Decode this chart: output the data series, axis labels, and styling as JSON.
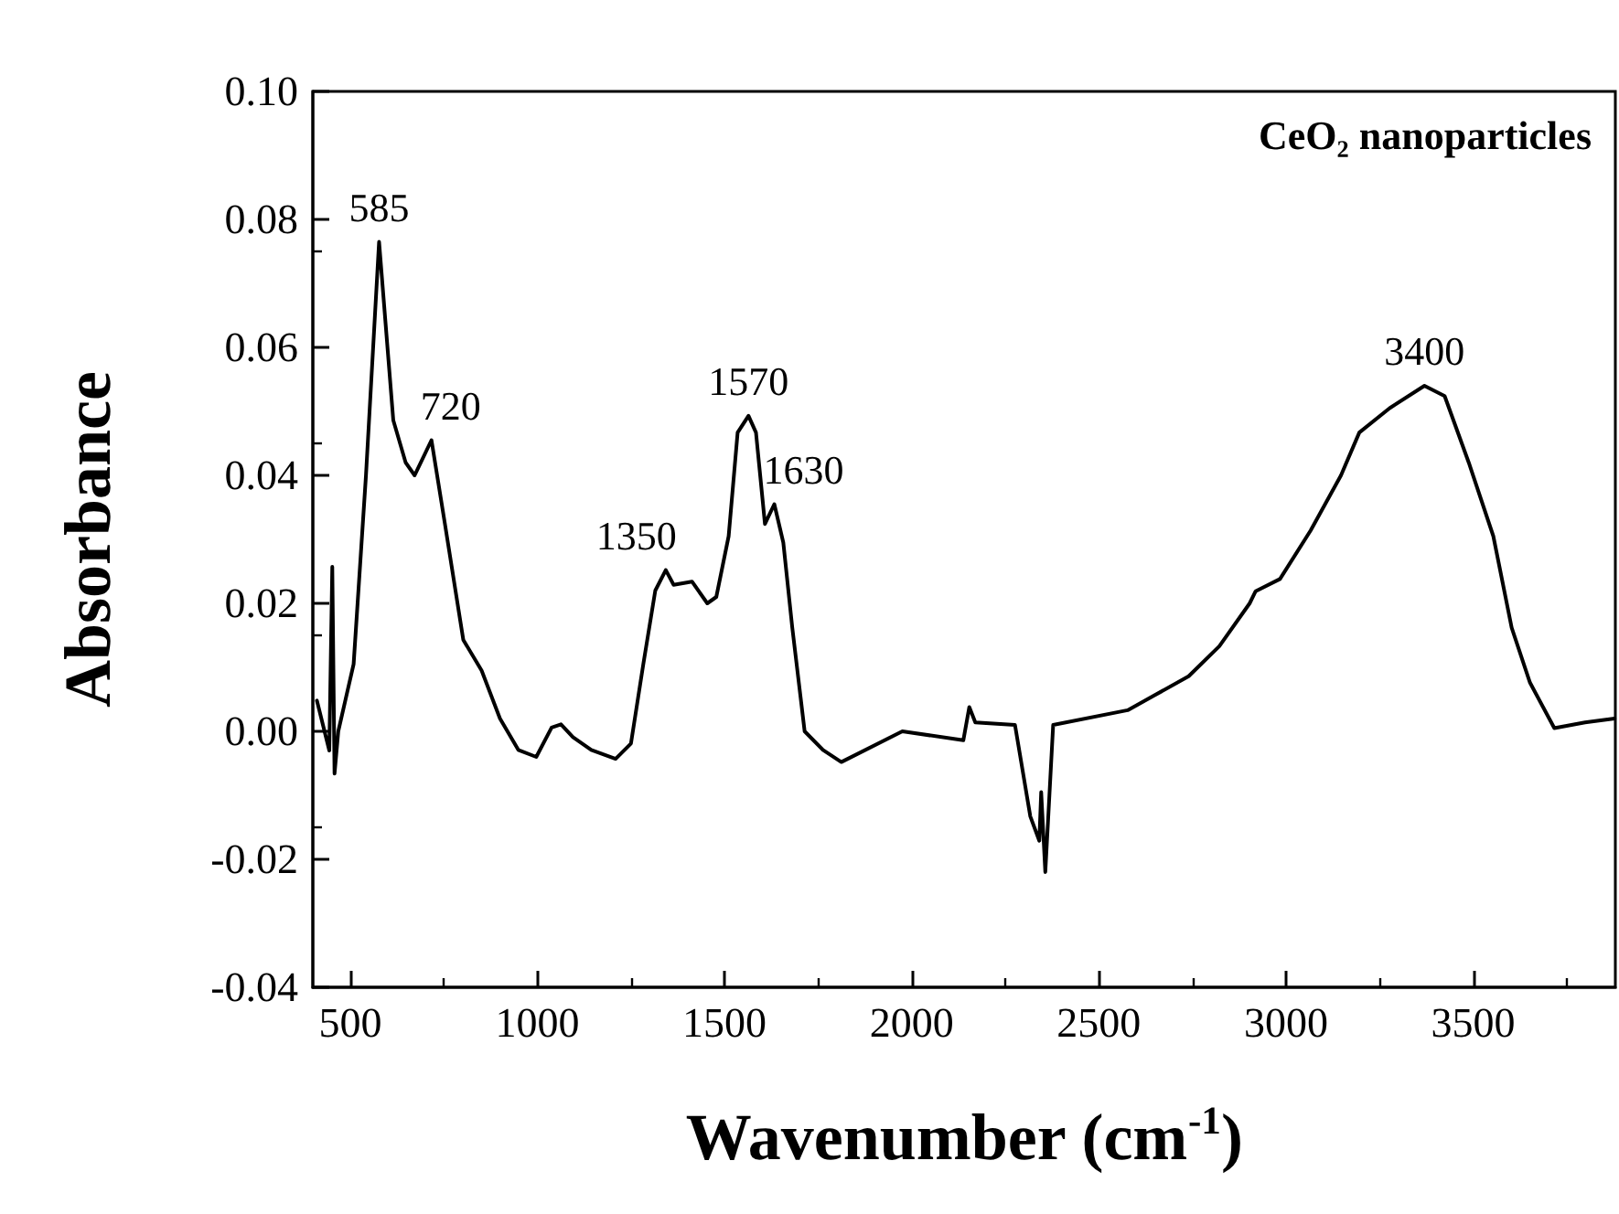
{
  "chart_data": {
    "type": "line",
    "title": "CeO₂ nanoparticles",
    "xlabel": "Wavenumber (cm$^{-1}$)",
    "ylabel": "Absorbance",
    "xlim": [
      400,
      3880
    ],
    "xticks": [
      500,
      1000,
      1500,
      2000,
      2500,
      3000,
      3500
    ],
    "ylim": [
      -0.04,
      0.1
    ],
    "yticks": [
      {
        "value": -0.04,
        "label": "-0.04"
      },
      {
        "value": -0.02,
        "label": "-0.02"
      },
      {
        "value": 0,
        "label": "0.00"
      },
      {
        "value": 0.02,
        "label": "0.02"
      },
      {
        "value": 0.04,
        "label": "0.04"
      },
      {
        "value": 0.06,
        "label": "0.06"
      },
      {
        "value": 0.08,
        "label": "0.08"
      },
      {
        "value": 0.1,
        "label": "0.10"
      }
    ],
    "grid": false,
    "marker": "none",
    "line_style": "solid",
    "annotations": [
      {
        "text": "585",
        "x": 577,
        "y": 0.0765
      },
      {
        "text": "720",
        "x": 717,
        "y": 0.0455
      },
      {
        "text": "1350",
        "x": 1343,
        "y": 0.0252
      },
      {
        "text": "1570",
        "x": 1564,
        "y": 0.0493
      },
      {
        "text": "1630",
        "x": 1633,
        "y": 0.0355
      },
      {
        "text": "3400",
        "x": 3370,
        "y": 0.054
      }
    ],
    "series": [
      {
        "color": "#000000",
        "x": [
          411,
          444,
          452,
          458,
          468,
          509,
          542,
          577,
          615,
          648,
          672,
          717,
          753,
          802,
          851,
          900,
          949,
          997,
          1038,
          1063,
          1095,
          1144,
          1209,
          1250,
          1283,
          1315,
          1343,
          1364,
          1413,
          1454,
          1478,
          1511,
          1535,
          1564,
          1584,
          1608,
          1633,
          1657,
          1681,
          1714,
          1763,
          1812,
          1975,
          2138,
          2154,
          2170,
          2276,
          2317,
          2341,
          2346,
          2357,
          2378,
          2577,
          2740,
          2822,
          2903,
          2919,
          2984,
          3066,
          3147,
          3196,
          3277,
          3370,
          3424,
          3489,
          3554,
          3603,
          3652,
          3717,
          3799,
          3878
        ],
        "values": [
          0.0048,
          -0.003,
          0.0257,
          -0.0066,
          0,
          0.0105,
          0.04,
          0.0765,
          0.0486,
          0.042,
          0.04,
          0.0455,
          0.0324,
          0.0143,
          0.0095,
          0.002,
          -0.0029,
          -0.004,
          0.0006,
          0.0011,
          -0.0009,
          -0.0029,
          -0.0043,
          -0.0019,
          0.0105,
          0.022,
          0.0252,
          0.0229,
          0.0234,
          0.02,
          0.021,
          0.0305,
          0.0467,
          0.0493,
          0.0467,
          0.0324,
          0.0355,
          0.0295,
          0.0162,
          0,
          -0.0029,
          -0.0048,
          0,
          -0.0014,
          0.0038,
          0.0014,
          0.001,
          -0.0133,
          -0.0171,
          -0.0095,
          -0.022,
          0.001,
          0.0033,
          0.0086,
          0.0133,
          0.02,
          0.0219,
          0.0238,
          0.0314,
          0.04,
          0.0467,
          0.0505,
          0.054,
          0.0524,
          0.0419,
          0.0305,
          0.0162,
          0.0076,
          0.0005,
          0.0014,
          0.002
        ]
      }
    ]
  }
}
